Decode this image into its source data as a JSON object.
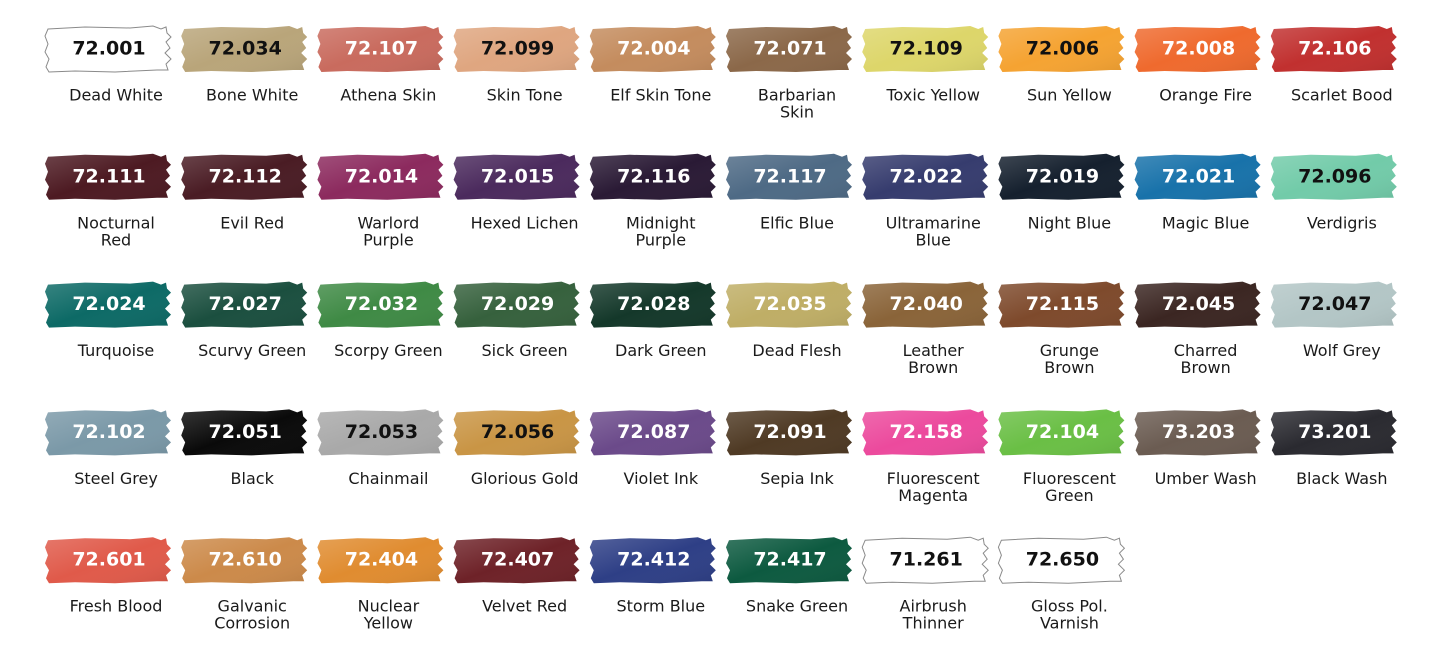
{
  "swatches": [
    {
      "code": "72.001",
      "name": [
        "Dead White"
      ],
      "color": "#ffffff",
      "text_color": "#111111"
    },
    {
      "code": "72.034",
      "name": [
        "Bone White"
      ],
      "color": "#b9a57a",
      "text_color": "#111111"
    },
    {
      "code": "72.107",
      "name": [
        "Athena Skin"
      ],
      "color": "#c96b5e",
      "text_color": "#ffffff"
    },
    {
      "code": "72.099",
      "name": [
        "Skin Tone"
      ],
      "color": "#dfa680",
      "text_color": "#111111"
    },
    {
      "code": "72.004",
      "name": [
        "Elf Skin Tone"
      ],
      "color": "#c48c5e",
      "text_color": "#ffffff"
    },
    {
      "code": "72.071",
      "name": [
        "Barbarian",
        "Skin"
      ],
      "color": "#8b6849",
      "text_color": "#ffffff"
    },
    {
      "code": "72.109",
      "name": [
        "Toxic Yellow"
      ],
      "color": "#ddd66a",
      "text_color": "#111111"
    },
    {
      "code": "72.006",
      "name": [
        "Sun Yellow"
      ],
      "color": "#f5a332",
      "text_color": "#111111"
    },
    {
      "code": "72.008",
      "name": [
        "Orange Fire"
      ],
      "color": "#ef6a2e",
      "text_color": "#ffffff"
    },
    {
      "code": "72.106",
      "name": [
        "Scarlet Bood"
      ],
      "color": "#c1302f",
      "text_color": "#ffffff"
    },
    {
      "code": "72.111",
      "name": [
        "Nocturnal",
        "Red"
      ],
      "color": "#4d1a22",
      "text_color": "#ffffff"
    },
    {
      "code": "72.112",
      "name": [
        "Evil Red"
      ],
      "color": "#4a1c24",
      "text_color": "#ffffff"
    },
    {
      "code": "72.014",
      "name": [
        "Warlord",
        "Purple"
      ],
      "color": "#8c2a5e",
      "text_color": "#ffffff"
    },
    {
      "code": "72.015",
      "name": [
        "Hexed Lichen"
      ],
      "color": "#4b2a5d",
      "text_color": "#ffffff"
    },
    {
      "code": "72.116",
      "name": [
        "Midnight",
        "Purple"
      ],
      "color": "#2a1a35",
      "text_color": "#ffffff"
    },
    {
      "code": "72.117",
      "name": [
        "Elfic Blue"
      ],
      "color": "#4e6a85",
      "text_color": "#ffffff"
    },
    {
      "code": "72.022",
      "name": [
        "Ultramarine",
        "Blue"
      ],
      "color": "#363c6e",
      "text_color": "#ffffff"
    },
    {
      "code": "72.019",
      "name": [
        "Night Blue"
      ],
      "color": "#15202e",
      "text_color": "#ffffff"
    },
    {
      "code": "72.021",
      "name": [
        "Magic Blue"
      ],
      "color": "#1872aa",
      "text_color": "#ffffff"
    },
    {
      "code": "72.096",
      "name": [
        "Verdigris"
      ],
      "color": "#72cba9",
      "text_color": "#111111"
    },
    {
      "code": "72.024",
      "name": [
        "Turquoise"
      ],
      "color": "#0d6a66",
      "text_color": "#ffffff"
    },
    {
      "code": "72.027",
      "name": [
        "Scurvy Green"
      ],
      "color": "#1b4f3f",
      "text_color": "#ffffff"
    },
    {
      "code": "72.032",
      "name": [
        "Scorpy Green"
      ],
      "color": "#3f8a45",
      "text_color": "#ffffff"
    },
    {
      "code": "72.029",
      "name": [
        "Sick Green"
      ],
      "color": "#36613d",
      "text_color": "#ffffff"
    },
    {
      "code": "72.028",
      "name": [
        "Dark Green"
      ],
      "color": "#14382a",
      "text_color": "#ffffff"
    },
    {
      "code": "72.035",
      "name": [
        "Dead Flesh"
      ],
      "color": "#bfae66",
      "text_color": "#ffffff"
    },
    {
      "code": "72.040",
      "name": [
        "Leather",
        "Brown"
      ],
      "color": "#8a6439",
      "text_color": "#ffffff"
    },
    {
      "code": "72.115",
      "name": [
        "Grunge",
        "Brown"
      ],
      "color": "#7e4a2c",
      "text_color": "#ffffff"
    },
    {
      "code": "72.045",
      "name": [
        "Charred",
        "Brown"
      ],
      "color": "#3b2622",
      "text_color": "#ffffff"
    },
    {
      "code": "72.047",
      "name": [
        "Wolf Grey"
      ],
      "color": "#b3c6c6",
      "text_color": "#111111"
    },
    {
      "code": "72.102",
      "name": [
        "Steel Grey"
      ],
      "color": "#7b99a8",
      "text_color": "#ffffff"
    },
    {
      "code": "72.051",
      "name": [
        "Black"
      ],
      "color": "#0a0a0a",
      "text_color": "#ffffff"
    },
    {
      "code": "72.053",
      "name": [
        "Chainmail"
      ],
      "color": "#a9a9a9",
      "text_color": "#111111"
    },
    {
      "code": "72.056",
      "name": [
        "Glorious Gold"
      ],
      "color": "#c99545",
      "text_color": "#111111"
    },
    {
      "code": "72.087",
      "name": [
        "Violet Ink"
      ],
      "color": "#6b4a8a",
      "text_color": "#ffffff"
    },
    {
      "code": "72.091",
      "name": [
        "Sepia Ink"
      ],
      "color": "#4f3a24",
      "text_color": "#ffffff"
    },
    {
      "code": "72.158",
      "name": [
        "Fluorescent",
        "Magenta"
      ],
      "color": "#ec4a9d",
      "text_color": "#ffffff"
    },
    {
      "code": "72.104",
      "name": [
        "Fluorescent",
        "Green"
      ],
      "color": "#6abf45",
      "text_color": "#ffffff"
    },
    {
      "code": "73.203",
      "name": [
        "Umber Wash"
      ],
      "color": "#6b5c52",
      "text_color": "#ffffff"
    },
    {
      "code": "73.201",
      "name": [
        "Black Wash"
      ],
      "color": "#2a2a30",
      "text_color": "#ffffff"
    },
    {
      "code": "72.601",
      "name": [
        "Fresh Blood"
      ],
      "color": "#e05a4a",
      "text_color": "#ffffff"
    },
    {
      "code": "72.610",
      "name": [
        "Galvanic",
        "Corrosion"
      ],
      "color": "#cc8a4a",
      "text_color": "#ffffff"
    },
    {
      "code": "72.404",
      "name": [
        "Nuclear",
        "Yellow"
      ],
      "color": "#e08c30",
      "text_color": "#ffffff"
    },
    {
      "code": "72.407",
      "name": [
        "Velvet Red"
      ],
      "color": "#6e2228",
      "text_color": "#ffffff"
    },
    {
      "code": "72.412",
      "name": [
        "Storm Blue"
      ],
      "color": "#2e3f86",
      "text_color": "#ffffff"
    },
    {
      "code": "72.417",
      "name": [
        "Snake Green"
      ],
      "color": "#0d5a40",
      "text_color": "#ffffff"
    },
    {
      "code": "71.261",
      "name": [
        "Airbrush",
        "Thinner"
      ],
      "color": "#ffffff",
      "text_color": "#111111"
    },
    {
      "code": "72.650",
      "name": [
        "Gloss Pol.",
        "Varnish"
      ],
      "color": "#ffffff",
      "text_color": "#111111"
    }
  ]
}
